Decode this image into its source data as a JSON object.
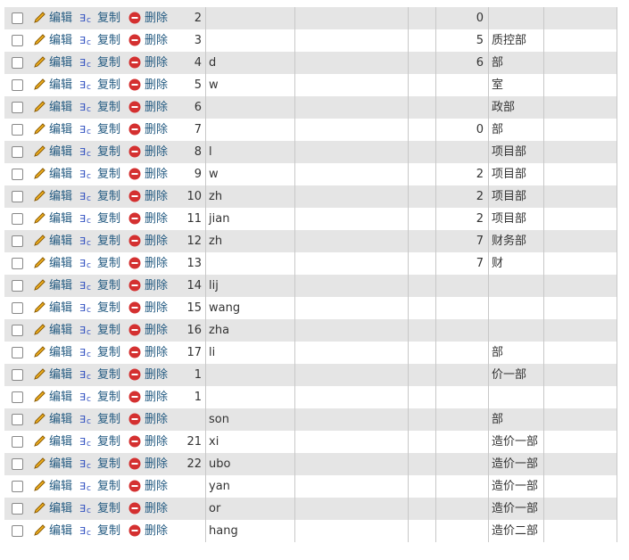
{
  "actions": {
    "edit": "编辑",
    "copy": "复制",
    "delete": "删除"
  },
  "table": {
    "rows": [
      {
        "id": "2",
        "name": null,
        "num": "0",
        "dept": null
      },
      {
        "id": "3",
        "name": null,
        "num": "5",
        "dept": "质控部"
      },
      {
        "id": "4",
        "name": "d",
        "num": "6",
        "dept": "部"
      },
      {
        "id": "5",
        "name": "w",
        "num": null,
        "dept": "室"
      },
      {
        "id": "6",
        "name": null,
        "num": null,
        "dept": "政部"
      },
      {
        "id": "7",
        "name": null,
        "num": "0",
        "dept": "部"
      },
      {
        "id": "8",
        "name": "l",
        "num": null,
        "dept": "项目部"
      },
      {
        "id": "9",
        "name": "w",
        "num": "2",
        "dept": "项目部"
      },
      {
        "id": "10",
        "name": "zh",
        "num": "2",
        "dept": "项目部"
      },
      {
        "id": "11",
        "name": "jian",
        "num": "2",
        "dept": "项目部"
      },
      {
        "id": "12",
        "name": "zh",
        "num": "7",
        "dept": "财务部"
      },
      {
        "id": "13",
        "name": null,
        "num": "7",
        "dept": "财"
      },
      {
        "id": "14",
        "name": "lij",
        "num": null,
        "dept": null
      },
      {
        "id": "15",
        "name": "wang",
        "num": null,
        "dept": null
      },
      {
        "id": "16",
        "name": "zha",
        "num": null,
        "dept": null
      },
      {
        "id": "17",
        "name": "li",
        "num": null,
        "dept": "部"
      },
      {
        "id": "1",
        "name": null,
        "num": null,
        "dept": "价一部"
      },
      {
        "id": "1",
        "name": null,
        "num": null,
        "dept": null
      },
      {
        "id": null,
        "name": "son",
        "num": null,
        "dept": "部"
      },
      {
        "id": "21",
        "name": "xi",
        "num": null,
        "dept": "造价一部"
      },
      {
        "id": "22",
        "name": "ubo",
        "num": null,
        "dept": "造价一部"
      },
      {
        "id": null,
        "name": "yan",
        "num": null,
        "dept": "造价一部"
      },
      {
        "id": null,
        "name": "or",
        "num": null,
        "dept": "造价一部"
      },
      {
        "id": null,
        "name": "hang",
        "num": null,
        "dept": "造价二部"
      }
    ]
  }
}
